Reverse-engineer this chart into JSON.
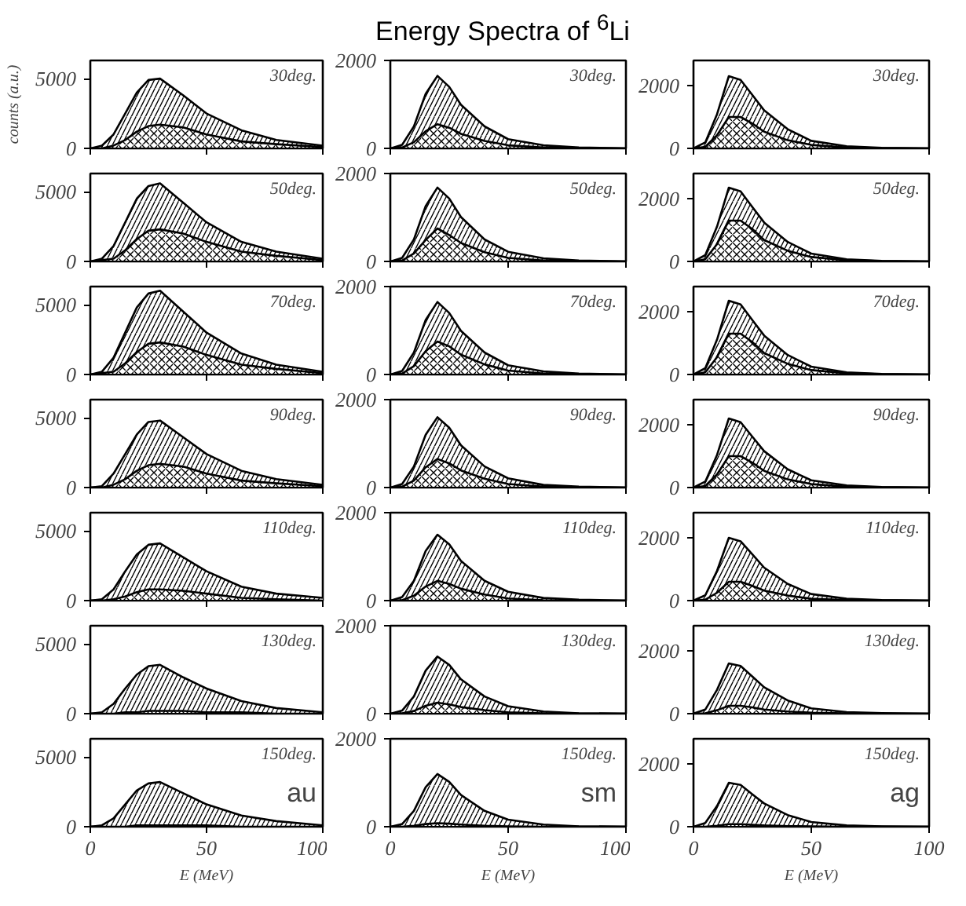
{
  "chart_data": [
    {
      "type": "area",
      "ylabel": "counts (a.u.)",
      "annotations": [
        "30deg."
      ],
      "x": [
        0,
        5,
        10,
        15,
        20,
        25,
        30,
        40,
        50,
        65,
        80,
        100
      ],
      "xlim": [
        0,
        100
      ],
      "xticks": [
        0,
        50,
        100
      ],
      "ylim": [
        0,
        6300
      ],
      "yticks": [
        0,
        5000
      ],
      "tick_labels": "y",
      "series": [
        {
          "color": "#000000",
          "values": [
            0,
            200,
            1000,
            2500,
            4000,
            4900,
            5000,
            3800,
            2500,
            1300,
            600,
            200
          ]
        },
        {
          "color": "#000000",
          "values": [
            0,
            0,
            200,
            600,
            1200,
            1600,
            1700,
            1500,
            1000,
            500,
            300,
            100
          ]
        }
      ]
    },
    {
      "type": "area",
      "title": "Energy Spectra of $^{6}$Li",
      "annotations": [
        "30deg."
      ],
      "x": [
        0,
        5,
        10,
        15,
        20,
        25,
        30,
        40,
        50,
        65,
        80,
        100
      ],
      "xlim": [
        0,
        100
      ],
      "xticks": [
        0,
        50,
        100
      ],
      "ylim": [
        0,
        2000
      ],
      "yticks": [
        0,
        2000
      ],
      "tick_labels": "y",
      "series": [
        {
          "color": "#000000",
          "values": [
            0,
            80,
            500,
            1240,
            1650,
            1400,
            990,
            500,
            210,
            70,
            20,
            0
          ]
        },
        {
          "color": "#000000",
          "values": [
            0,
            20,
            140,
            390,
            550,
            470,
            330,
            170,
            70,
            20,
            10,
            0
          ]
        }
      ]
    },
    {
      "type": "area",
      "annotations": [
        "30deg."
      ],
      "x": [
        0,
        5,
        10,
        15,
        20,
        25,
        30,
        40,
        50,
        65,
        80,
        100
      ],
      "xlim": [
        0,
        100
      ],
      "xticks": [
        0,
        50,
        100
      ],
      "ylim": [
        0,
        2800
      ],
      "yticks": [
        0,
        2000
      ],
      "tick_labels": "y",
      "series": [
        {
          "color": "#000000",
          "values": [
            0,
            190,
            1090,
            2300,
            2180,
            1700,
            1210,
            610,
            240,
            70,
            20,
            0
          ]
        },
        {
          "color": "#000000",
          "values": [
            0,
            50,
            420,
            1000,
            1000,
            790,
            530,
            260,
            110,
            30,
            10,
            0
          ]
        }
      ]
    },
    {
      "type": "area",
      "annotations": [
        "50deg."
      ],
      "x": [
        0,
        5,
        10,
        15,
        20,
        25,
        30,
        40,
        50,
        65,
        80,
        100
      ],
      "xlim": [
        0,
        100
      ],
      "xticks": [
        0,
        50,
        100
      ],
      "ylim": [
        0,
        6300
      ],
      "yticks": [
        0,
        5000
      ],
      "tick_labels": "y",
      "series": [
        {
          "color": "#000000",
          "values": [
            0,
            200,
            1100,
            2800,
            4500,
            5400,
            5600,
            4200,
            2800,
            1400,
            700,
            200
          ]
        },
        {
          "color": "#000000",
          "values": [
            0,
            100,
            200,
            800,
            1600,
            2200,
            2300,
            2000,
            1400,
            700,
            400,
            100
          ]
        }
      ]
    },
    {
      "type": "area",
      "annotations": [
        "50deg."
      ],
      "x": [
        0,
        5,
        10,
        15,
        20,
        25,
        30,
        40,
        50,
        65,
        80,
        100
      ],
      "xlim": [
        0,
        100
      ],
      "xticks": [
        0,
        50,
        100
      ],
      "ylim": [
        0,
        2000
      ],
      "yticks": [
        0,
        2000
      ],
      "tick_labels": "y",
      "series": [
        {
          "color": "#000000",
          "values": [
            0,
            80,
            500,
            1260,
            1680,
            1430,
            1010,
            500,
            220,
            70,
            20,
            0
          ]
        },
        {
          "color": "#000000",
          "values": [
            0,
            20,
            180,
            490,
            750,
            600,
            420,
            210,
            80,
            20,
            10,
            0
          ]
        }
      ]
    },
    {
      "type": "area",
      "annotations": [
        "50deg."
      ],
      "x": [
        0,
        5,
        10,
        15,
        20,
        25,
        30,
        40,
        50,
        65,
        80,
        100
      ],
      "xlim": [
        0,
        100
      ],
      "xticks": [
        0,
        50,
        100
      ],
      "ylim": [
        0,
        2800
      ],
      "yticks": [
        0,
        2000
      ],
      "tick_labels": "y",
      "series": [
        {
          "color": "#000000",
          "values": [
            0,
            200,
            1110,
            2350,
            2230,
            1730,
            1240,
            620,
            250,
            70,
            20,
            0
          ]
        },
        {
          "color": "#000000",
          "values": [
            0,
            70,
            550,
            1300,
            1300,
            1030,
            680,
            340,
            140,
            40,
            10,
            0
          ]
        }
      ]
    },
    {
      "type": "area",
      "annotations": [
        "70deg."
      ],
      "x": [
        0,
        5,
        10,
        15,
        20,
        25,
        30,
        40,
        50,
        65,
        80,
        100
      ],
      "xlim": [
        0,
        100
      ],
      "xticks": [
        0,
        50,
        100
      ],
      "ylim": [
        0,
        6300
      ],
      "yticks": [
        0,
        5000
      ],
      "tick_labels": "y",
      "series": [
        {
          "color": "#000000",
          "values": [
            0,
            200,
            1200,
            3000,
            4800,
            5800,
            6000,
            4500,
            3000,
            1500,
            700,
            200
          ]
        },
        {
          "color": "#000000",
          "values": [
            0,
            100,
            200,
            800,
            1600,
            2200,
            2300,
            2000,
            1400,
            700,
            400,
            100
          ]
        }
      ]
    },
    {
      "type": "area",
      "annotations": [
        "70deg."
      ],
      "x": [
        0,
        5,
        10,
        15,
        20,
        25,
        30,
        40,
        50,
        65,
        80,
        100
      ],
      "xlim": [
        0,
        100
      ],
      "xticks": [
        0,
        50,
        100
      ],
      "ylim": [
        0,
        2000
      ],
      "yticks": [
        0,
        2000
      ],
      "tick_labels": "y",
      "series": [
        {
          "color": "#000000",
          "values": [
            0,
            80,
            500,
            1240,
            1650,
            1400,
            990,
            500,
            210,
            70,
            20,
            0
          ]
        },
        {
          "color": "#000000",
          "values": [
            0,
            20,
            190,
            530,
            750,
            640,
            450,
            230,
            90,
            20,
            10,
            0
          ]
        }
      ]
    },
    {
      "type": "area",
      "annotations": [
        "70deg."
      ],
      "x": [
        0,
        5,
        10,
        15,
        20,
        25,
        30,
        40,
        50,
        65,
        80,
        100
      ],
      "xlim": [
        0,
        100
      ],
      "xticks": [
        0,
        50,
        100
      ],
      "ylim": [
        0,
        2800
      ],
      "yticks": [
        0,
        2000
      ],
      "tick_labels": "y",
      "series": [
        {
          "color": "#000000",
          "values": [
            0,
            200,
            1110,
            2350,
            2230,
            1730,
            1240,
            620,
            250,
            70,
            20,
            0
          ]
        },
        {
          "color": "#000000",
          "values": [
            0,
            70,
            550,
            1300,
            1300,
            1030,
            680,
            340,
            140,
            40,
            10,
            0
          ]
        }
      ]
    },
    {
      "type": "area",
      "annotations": [
        "90deg."
      ],
      "x": [
        0,
        5,
        10,
        15,
        20,
        25,
        30,
        40,
        50,
        65,
        80,
        100
      ],
      "xlim": [
        0,
        100
      ],
      "xticks": [
        0,
        50,
        100
      ],
      "ylim": [
        0,
        6300
      ],
      "yticks": [
        0,
        5000
      ],
      "tick_labels": "y",
      "series": [
        {
          "color": "#000000",
          "values": [
            0,
            100,
            1000,
            2400,
            3800,
            4700,
            4800,
            3600,
            2400,
            1200,
            600,
            200
          ]
        },
        {
          "color": "#000000",
          "values": [
            0,
            0,
            200,
            600,
            1200,
            1600,
            1700,
            1500,
            1000,
            500,
            300,
            100
          ]
        }
      ]
    },
    {
      "type": "area",
      "annotations": [
        "90deg."
      ],
      "x": [
        0,
        5,
        10,
        15,
        20,
        25,
        30,
        40,
        50,
        65,
        80,
        100
      ],
      "xlim": [
        0,
        100
      ],
      "xticks": [
        0,
        50,
        100
      ],
      "ylim": [
        0,
        2000
      ],
      "yticks": [
        0,
        2000
      ],
      "tick_labels": "y",
      "series": [
        {
          "color": "#000000",
          "values": [
            0,
            80,
            480,
            1200,
            1600,
            1360,
            960,
            480,
            210,
            60,
            20,
            0
          ]
        },
        {
          "color": "#000000",
          "values": [
            0,
            20,
            160,
            460,
            650,
            550,
            390,
            200,
            80,
            20,
            10,
            0
          ]
        }
      ]
    },
    {
      "type": "area",
      "annotations": [
        "90deg."
      ],
      "x": [
        0,
        5,
        10,
        15,
        20,
        25,
        30,
        40,
        50,
        65,
        80,
        100
      ],
      "xlim": [
        0,
        100
      ],
      "xticks": [
        0,
        50,
        100
      ],
      "ylim": [
        0,
        2800
      ],
      "yticks": [
        0,
        2000
      ],
      "tick_labels": "y",
      "series": [
        {
          "color": "#000000",
          "values": [
            0,
            190,
            1040,
            2200,
            2080,
            1620,
            1160,
            580,
            230,
            70,
            20,
            0
          ]
        },
        {
          "color": "#000000",
          "values": [
            0,
            50,
            420,
            1000,
            1000,
            790,
            530,
            260,
            110,
            30,
            10,
            0
          ]
        }
      ]
    },
    {
      "type": "area",
      "annotations": [
        "110deg."
      ],
      "x": [
        0,
        5,
        10,
        15,
        20,
        25,
        30,
        40,
        50,
        65,
        80,
        100
      ],
      "xlim": [
        0,
        100
      ],
      "xticks": [
        0,
        50,
        100
      ],
      "ylim": [
        0,
        6300
      ],
      "yticks": [
        0,
        5000
      ],
      "tick_labels": "y",
      "series": [
        {
          "color": "#000000",
          "values": [
            0,
            100,
            800,
            2100,
            3300,
            4000,
            4100,
            3100,
            2100,
            1000,
            500,
            200
          ]
        },
        {
          "color": "#000000",
          "values": [
            0,
            0,
            100,
            300,
            600,
            800,
            800,
            700,
            500,
            200,
            100,
            0
          ]
        }
      ]
    },
    {
      "type": "area",
      "annotations": [
        "110deg."
      ],
      "x": [
        0,
        5,
        10,
        15,
        20,
        25,
        30,
        40,
        50,
        65,
        80,
        100
      ],
      "xlim": [
        0,
        100
      ],
      "xticks": [
        0,
        50,
        100
      ],
      "ylim": [
        0,
        2000
      ],
      "yticks": [
        0,
        2000
      ],
      "tick_labels": "y",
      "series": [
        {
          "color": "#000000",
          "values": [
            0,
            80,
            450,
            1130,
            1500,
            1280,
            900,
            450,
            200,
            60,
            20,
            0
          ]
        },
        {
          "color": "#000000",
          "values": [
            0,
            10,
            110,
            320,
            450,
            380,
            270,
            140,
            50,
            10,
            0,
            0
          ]
        }
      ]
    },
    {
      "type": "area",
      "annotations": [
        "110deg."
      ],
      "x": [
        0,
        5,
        10,
        15,
        20,
        25,
        30,
        40,
        50,
        65,
        80,
        100
      ],
      "xlim": [
        0,
        100
      ],
      "xticks": [
        0,
        50,
        100
      ],
      "ylim": [
        0,
        2800
      ],
      "yticks": [
        0,
        2000
      ],
      "tick_labels": "y",
      "series": [
        {
          "color": "#000000",
          "values": [
            0,
            170,
            950,
            2000,
            1890,
            1470,
            1050,
            530,
            210,
            60,
            20,
            0
          ]
        },
        {
          "color": "#000000",
          "values": [
            0,
            30,
            250,
            600,
            600,
            470,
            320,
            160,
            60,
            20,
            10,
            0
          ]
        }
      ]
    },
    {
      "type": "area",
      "annotations": [
        "130deg."
      ],
      "x": [
        0,
        5,
        10,
        15,
        20,
        25,
        30,
        40,
        50,
        65,
        80,
        100
      ],
      "xlim": [
        0,
        100
      ],
      "xticks": [
        0,
        50,
        100
      ],
      "ylim": [
        0,
        6300
      ],
      "yticks": [
        0,
        5000
      ],
      "tick_labels": "y",
      "series": [
        {
          "color": "#000000",
          "values": [
            0,
            100,
            700,
            1800,
            2800,
            3400,
            3500,
            2600,
            1800,
            900,
            400,
            100
          ]
        },
        {
          "color": "#000000",
          "values": [
            0,
            0,
            0,
            100,
            100,
            200,
            200,
            200,
            100,
            100,
            0,
            0
          ]
        }
      ]
    },
    {
      "type": "area",
      "annotations": [
        "130deg."
      ],
      "x": [
        0,
        5,
        10,
        15,
        20,
        25,
        30,
        40,
        50,
        65,
        80,
        100
      ],
      "xlim": [
        0,
        100
      ],
      "xticks": [
        0,
        50,
        100
      ],
      "ylim": [
        0,
        2000
      ],
      "yticks": [
        0,
        2000
      ],
      "tick_labels": "y",
      "series": [
        {
          "color": "#000000",
          "values": [
            0,
            70,
            390,
            980,
            1300,
            1110,
            780,
            390,
            170,
            50,
            10,
            0
          ]
        },
        {
          "color": "#000000",
          "values": [
            0,
            10,
            60,
            180,
            250,
            210,
            150,
            80,
            30,
            10,
            0,
            0
          ]
        }
      ]
    },
    {
      "type": "area",
      "annotations": [
        "130deg."
      ],
      "x": [
        0,
        5,
        10,
        15,
        20,
        25,
        30,
        40,
        50,
        65,
        80,
        100
      ],
      "xlim": [
        0,
        100
      ],
      "xticks": [
        0,
        50,
        100
      ],
      "ylim": [
        0,
        2800
      ],
      "yticks": [
        0,
        2000
      ],
      "tick_labels": "y",
      "series": [
        {
          "color": "#000000",
          "values": [
            0,
            130,
            760,
            1600,
            1520,
            1180,
            840,
            420,
            170,
            50,
            20,
            0
          ]
        },
        {
          "color": "#000000",
          "values": [
            0,
            10,
            110,
            250,
            250,
            200,
            130,
            70,
            30,
            10,
            0,
            0
          ]
        }
      ]
    },
    {
      "type": "area",
      "xlabel": "E (MeV)",
      "annotations": [
        "150deg.",
        "au"
      ],
      "x": [
        0,
        5,
        10,
        15,
        20,
        25,
        30,
        40,
        50,
        65,
        80,
        100
      ],
      "xlim": [
        0,
        100
      ],
      "xticks": [
        0,
        50,
        100
      ],
      "ylim": [
        0,
        6300
      ],
      "yticks": [
        0,
        5000
      ],
      "series": [
        {
          "color": "#000000",
          "values": [
            0,
            100,
            600,
            1600,
            2600,
            3100,
            3200,
            2400,
            1600,
            800,
            400,
            100
          ]
        },
        {
          "color": "#000000",
          "values": [
            0,
            0,
            0,
            0,
            100,
            100,
            100,
            100,
            100,
            0,
            0,
            0
          ]
        }
      ]
    },
    {
      "type": "area",
      "xlabel": "E (MeV)",
      "annotations": [
        "150deg.",
        "sm"
      ],
      "x": [
        0,
        5,
        10,
        15,
        20,
        25,
        30,
        40,
        50,
        65,
        80,
        100
      ],
      "xlim": [
        0,
        100
      ],
      "xticks": [
        0,
        50,
        100
      ],
      "ylim": [
        0,
        2000
      ],
      "yticks": [
        0,
        2000
      ],
      "series": [
        {
          "color": "#000000",
          "values": [
            0,
            60,
            360,
            900,
            1200,
            1020,
            720,
            360,
            160,
            50,
            10,
            0
          ]
        },
        {
          "color": "#000000",
          "values": [
            0,
            0,
            20,
            60,
            80,
            70,
            50,
            20,
            10,
            0,
            0,
            0
          ]
        }
      ]
    },
    {
      "type": "area",
      "xlabel": "E (MeV)",
      "annotations": [
        "150deg.",
        "ag"
      ],
      "x": [
        0,
        5,
        10,
        15,
        20,
        25,
        30,
        40,
        50,
        65,
        80,
        100
      ],
      "xlim": [
        0,
        100
      ],
      "xticks": [
        0,
        50,
        100
      ],
      "ylim": [
        0,
        2800
      ],
      "yticks": [
        0,
        2000
      ],
      "series": [
        {
          "color": "#000000",
          "values": [
            0,
            120,
            660,
            1400,
            1330,
            1030,
            740,
            370,
            150,
            40,
            10,
            0
          ]
        },
        {
          "color": "#000000",
          "values": [
            0,
            0,
            30,
            80,
            80,
            60,
            40,
            20,
            10,
            0,
            0,
            0
          ]
        }
      ]
    }
  ]
}
